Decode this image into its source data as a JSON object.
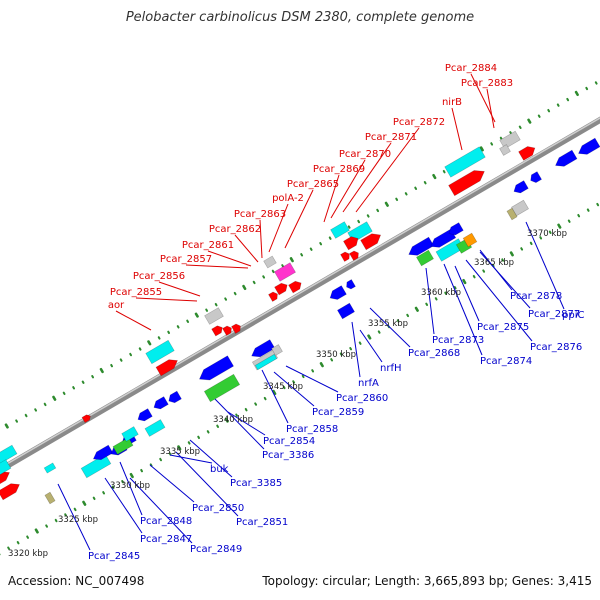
{
  "title": "Pelobacter carbinolicus DSM 2380, complete genome",
  "footer": {
    "accession": "Accession: NC_007498",
    "summary": "Topology: circular; Length: 3,665,893 bp; Genes: 3,415"
  },
  "colors": {
    "backbone": "#8a8a8a",
    "top_label": "#dd0000",
    "bottom_label": "#0000cc",
    "tick": "#2e8b2e",
    "scale_text": "#222222",
    "gene_red": "#ff0000",
    "gene_blue": "#0000ff",
    "gene_cyan": "#00eeee",
    "gene_green": "#33cc33",
    "gene_gray": "#c8c8c8",
    "gene_magenta": "#ff33cc"
  },
  "scale_labels": [
    "3320 kbp",
    "3325 kbp",
    "3330 kbp",
    "3335 kbp",
    "3340 kbp",
    "3345 kbp",
    "3350 kbp",
    "3355 kbp",
    "3360 kbp",
    "3365 kbp",
    "3370 kbp"
  ],
  "top_labels": [
    "Pcar_2884",
    "Pcar_2883",
    "nirB",
    "Pcar_2872",
    "Pcar_2871",
    "Pcar_2870",
    "Pcar_2869",
    "Pcar_2865",
    "polA-2",
    "Pcar_2863",
    "Pcar_2862",
    "Pcar_2861",
    "Pcar_2857",
    "Pcar_2856",
    "Pcar_2855",
    "aor"
  ],
  "bottom_labels": [
    "Pcar_3386",
    "Pcar_3385",
    "buk",
    "Pcar_2854",
    "Pcar_2845",
    "Pcar_2847",
    "Pcar_2848",
    "Pcar_2849",
    "Pcar_2850",
    "Pcar_2851",
    "Pcar_2858",
    "Pcar_2859",
    "Pcar_2860",
    "nrfA",
    "nrfH",
    "Pcar_2868",
    "Pcar_2873",
    "Pcar_2874",
    "Pcar_2875",
    "Pcar_2876",
    "Pcar_2877",
    "Pcar_2878",
    "ppiC"
  ]
}
